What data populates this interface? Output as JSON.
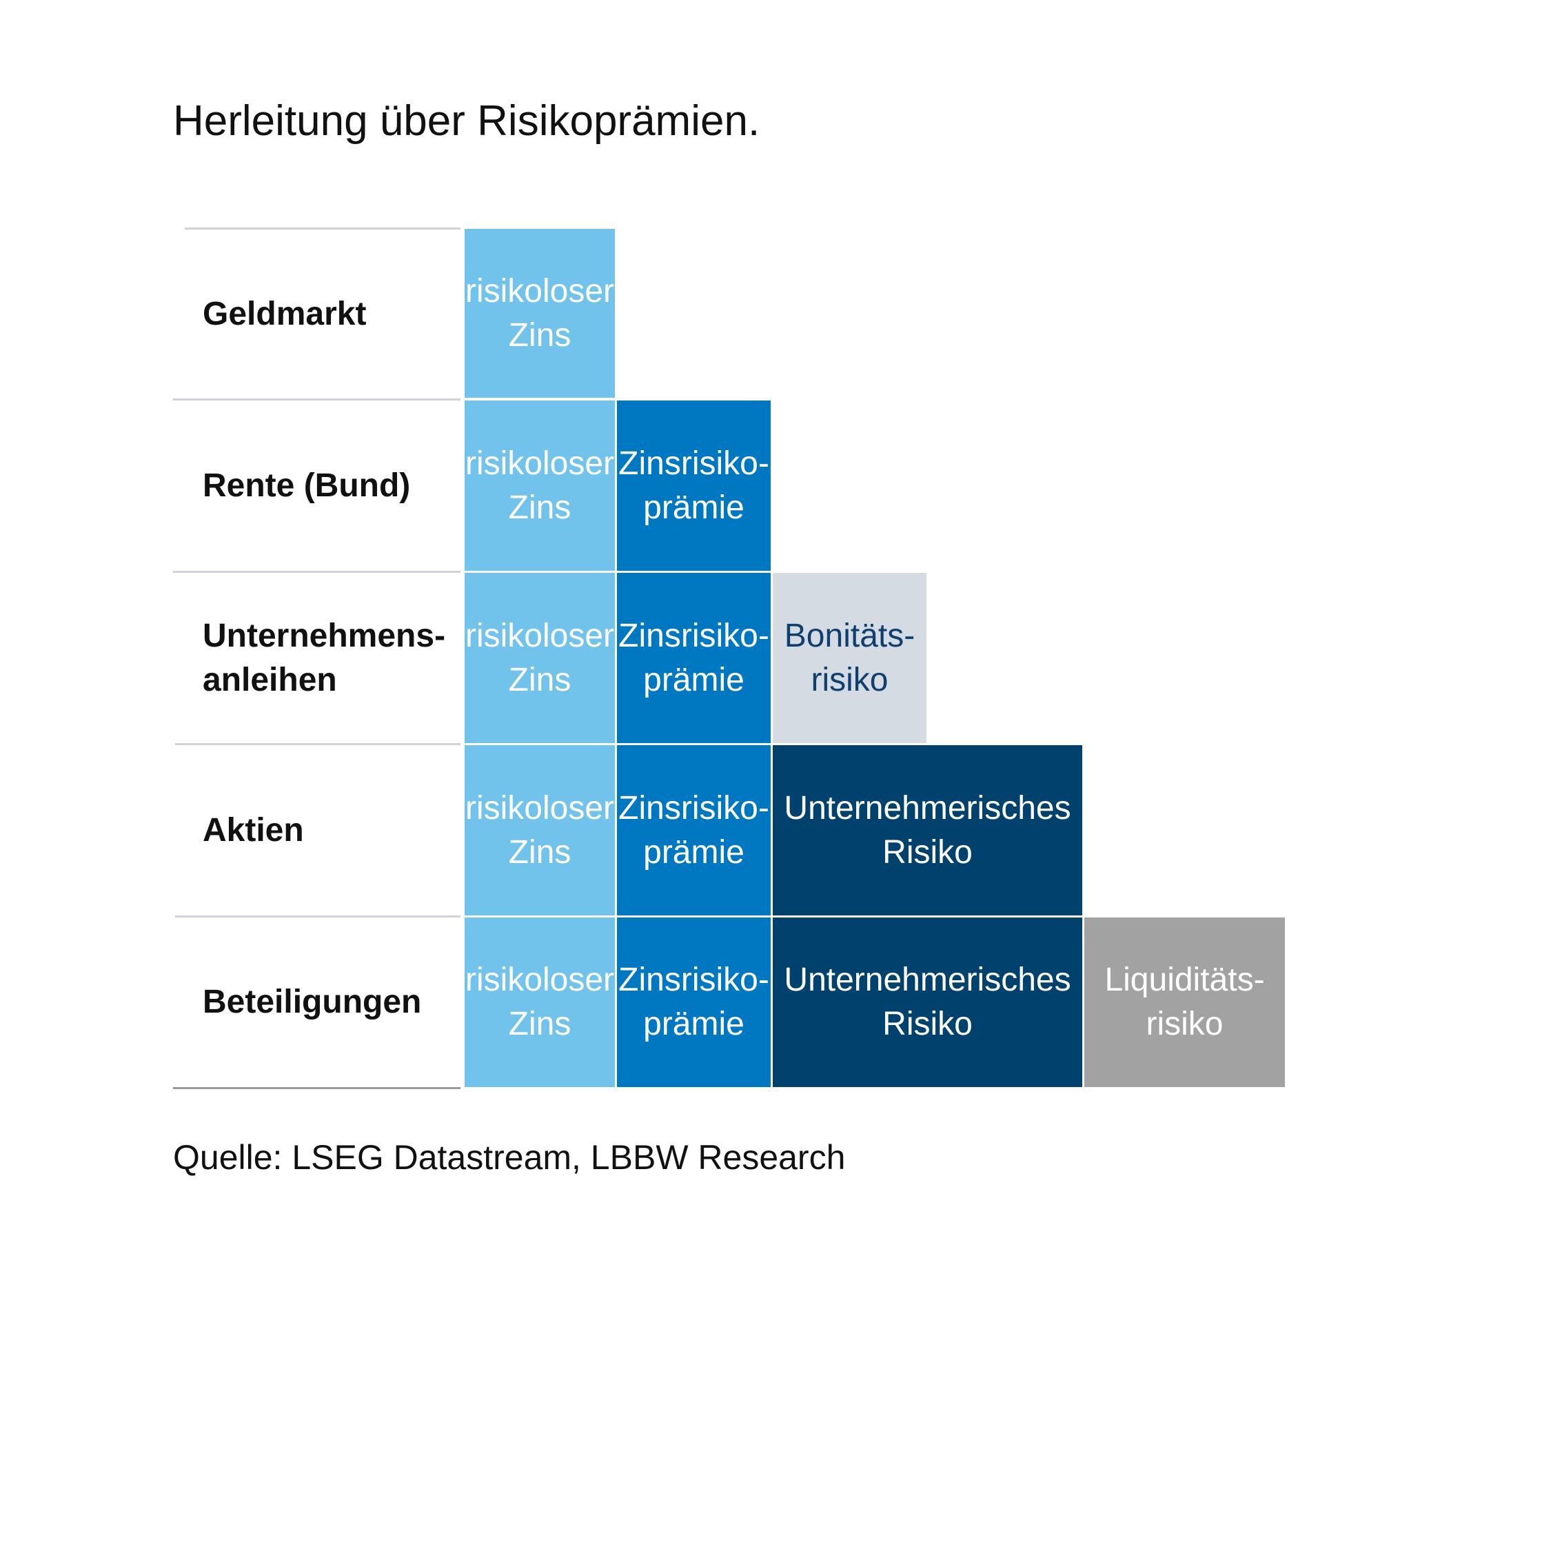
{
  "title": "Herleitung über Risikoprämien.",
  "colors": {
    "risikoloser_zins": "#71c3eb",
    "zinsrisikopraemie": "#0078c1",
    "bonitaetsrisiko": "#d5dbe2",
    "unternehmerisches_risiko": "#00426d",
    "liquiditaetsrisiko": "#a2a2a2"
  },
  "rows": [
    {
      "label": "Geldmarkt",
      "cells": [
        "risikoloser\nZins"
      ]
    },
    {
      "label": "Rente (Bund)",
      "cells": [
        "risikoloser\nZins",
        "Zinsrisiko-\nprämie"
      ]
    },
    {
      "label": "Unternehmens-\nanleihen",
      "cells": [
        "risikoloser\nZins",
        "Zinsrisiko-\nprämie",
        "Bonitäts-\nrisiko"
      ]
    },
    {
      "label": "Aktien",
      "cells": [
        "risikoloser\nZins",
        "Zinsrisiko-\nprämie",
        "Unternehmerisches\nRisiko"
      ]
    },
    {
      "label": "Beteiligungen",
      "cells": [
        "risikoloser\nZins",
        "Zinsrisiko-\nprämie",
        "Unternehmerisches\nRisiko",
        "Liquiditäts-\nrisiko"
      ]
    }
  ],
  "source": "Quelle: LSEG Datastream, LBBW Research"
}
